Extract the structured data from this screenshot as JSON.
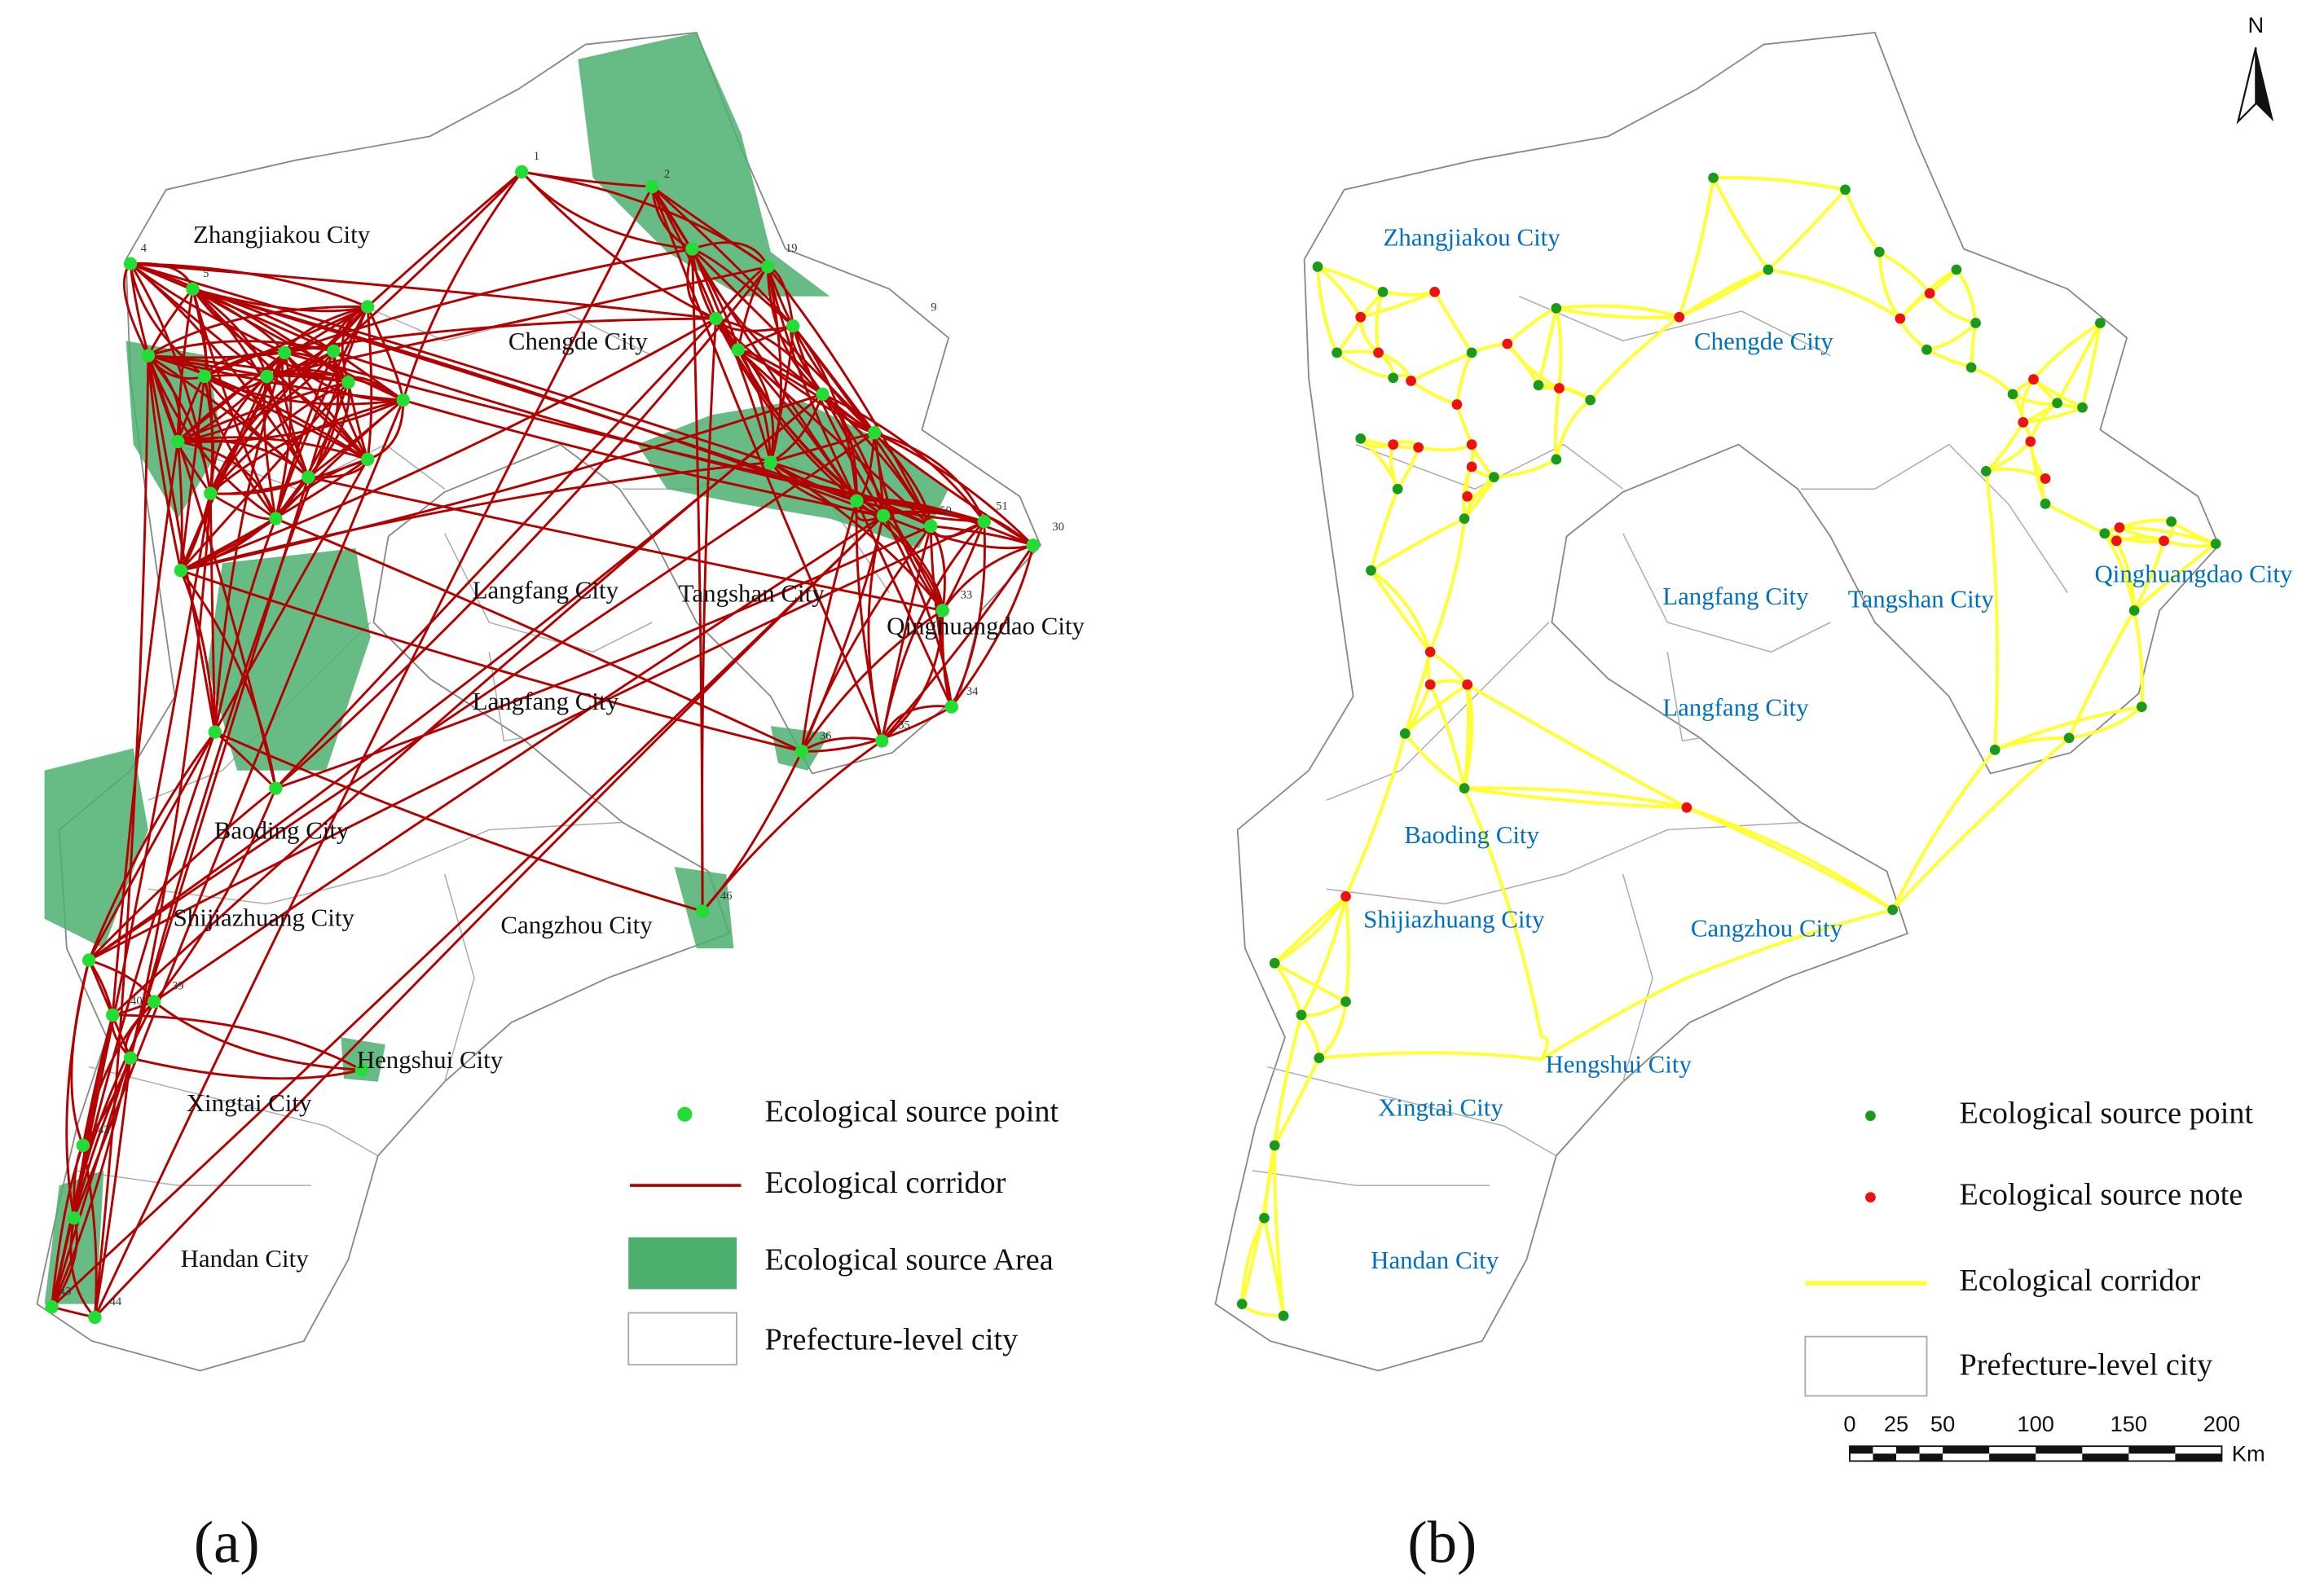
{
  "panel_a": {
    "label": "(a)",
    "cities": [
      "Zhangjiakou City",
      "Chengde City",
      "Langfang City",
      "Tangshan City",
      "Qinghuangdao City",
      "Langfang City",
      "Baoding City",
      "Shijiazhuang City",
      "Cangzhou City",
      "Hengshui City",
      "Xingtai City",
      "Handan City"
    ],
    "point_labels": [
      "1",
      "2",
      "4",
      "5",
      "9",
      "19",
      "30",
      "33",
      "34",
      "35",
      "36",
      "39",
      "40",
      "42",
      "43",
      "44",
      "46",
      "50",
      "51"
    ],
    "legend": [
      "Ecological source point",
      "Ecological corridor",
      "Ecological source Area",
      "Prefecture-level city"
    ]
  },
  "panel_b": {
    "label": "(b)",
    "cities": [
      "Zhangjiakou City",
      "Chengde City",
      "Langfang City",
      "Tangshan City",
      "Qinghuangdao City",
      "Langfang City",
      "Baoding City",
      "Shijiazhuang City",
      "Cangzhou City",
      "Hengshui City",
      "Xingtai City",
      "Handan City"
    ],
    "legend": [
      "Ecological source point",
      "Ecological source note",
      "Ecological corridor",
      "Prefecture-level city"
    ],
    "north": "N",
    "scale_bar": {
      "ticks": [
        0,
        25,
        50,
        100,
        150,
        200
      ],
      "unit": "Km"
    }
  }
}
